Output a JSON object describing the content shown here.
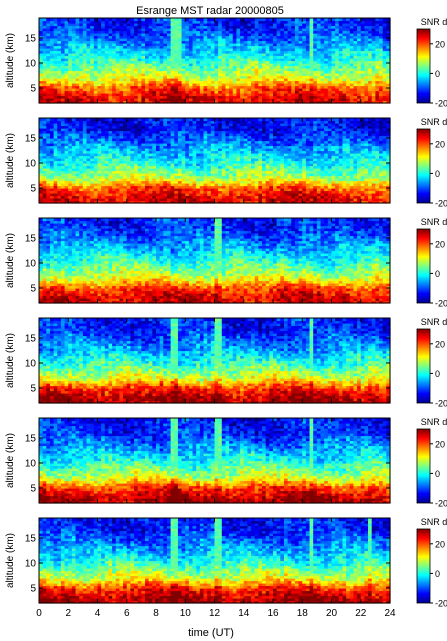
{
  "chart_data": {
    "type": "heatmap",
    "title": "Esrange MST radar 20000805",
    "xlabel": "time (UT)",
    "ylabel": "altitude (km)",
    "xlim": [
      0,
      24
    ],
    "ylim": [
      2,
      19
    ],
    "x_ticks": [
      0,
      2,
      4,
      6,
      8,
      10,
      12,
      14,
      16,
      18,
      20,
      22,
      24
    ],
    "y_ticks": [
      5,
      10,
      15
    ],
    "colorbar": {
      "label": "SNR dB",
      "range": [
        -20,
        30
      ],
      "ticks": [
        -20,
        0,
        20
      ],
      "colormap": "jet"
    },
    "panel_count": 6,
    "panels": [
      {
        "index": 1,
        "snr_profile": {
          "altitude_km": [
            3,
            5,
            7,
            10,
            13,
            17
          ],
          "snr_db": [
            25,
            20,
            10,
            2,
            -5,
            -12
          ]
        },
        "bright_columns_ut": [
          9.3,
          9.6,
          18.6
        ]
      },
      {
        "index": 2,
        "snr_profile": {
          "altitude_km": [
            3,
            5,
            7,
            10,
            13,
            17
          ],
          "snr_db": [
            25,
            20,
            8,
            0,
            -6,
            -14
          ]
        },
        "bright_columns_ut": []
      },
      {
        "index": 3,
        "snr_profile": {
          "altitude_km": [
            3,
            5,
            7,
            10,
            13,
            17
          ],
          "snr_db": [
            26,
            21,
            10,
            2,
            -5,
            -12
          ]
        },
        "bright_columns_ut": [
          12.2
        ]
      },
      {
        "index": 4,
        "snr_profile": {
          "altitude_km": [
            3,
            5,
            7,
            10,
            13,
            17
          ],
          "snr_db": [
            28,
            22,
            10,
            1,
            -6,
            -13
          ]
        },
        "bright_columns_ut": [
          9.3,
          12.2,
          18.6
        ]
      },
      {
        "index": 5,
        "snr_profile": {
          "altitude_km": [
            3,
            5,
            7,
            10,
            13,
            17
          ],
          "snr_db": [
            28,
            22,
            10,
            1,
            -6,
            -13
          ]
        },
        "bright_columns_ut": [
          9.3,
          12.2,
          18.6
        ]
      },
      {
        "index": 6,
        "snr_profile": {
          "altitude_km": [
            3,
            5,
            7,
            10,
            13,
            17
          ],
          "snr_db": [
            28,
            22,
            10,
            1,
            -6,
            -13
          ]
        },
        "bright_columns_ut": [
          9.3,
          12.2,
          18.6,
          22.6
        ]
      }
    ]
  }
}
